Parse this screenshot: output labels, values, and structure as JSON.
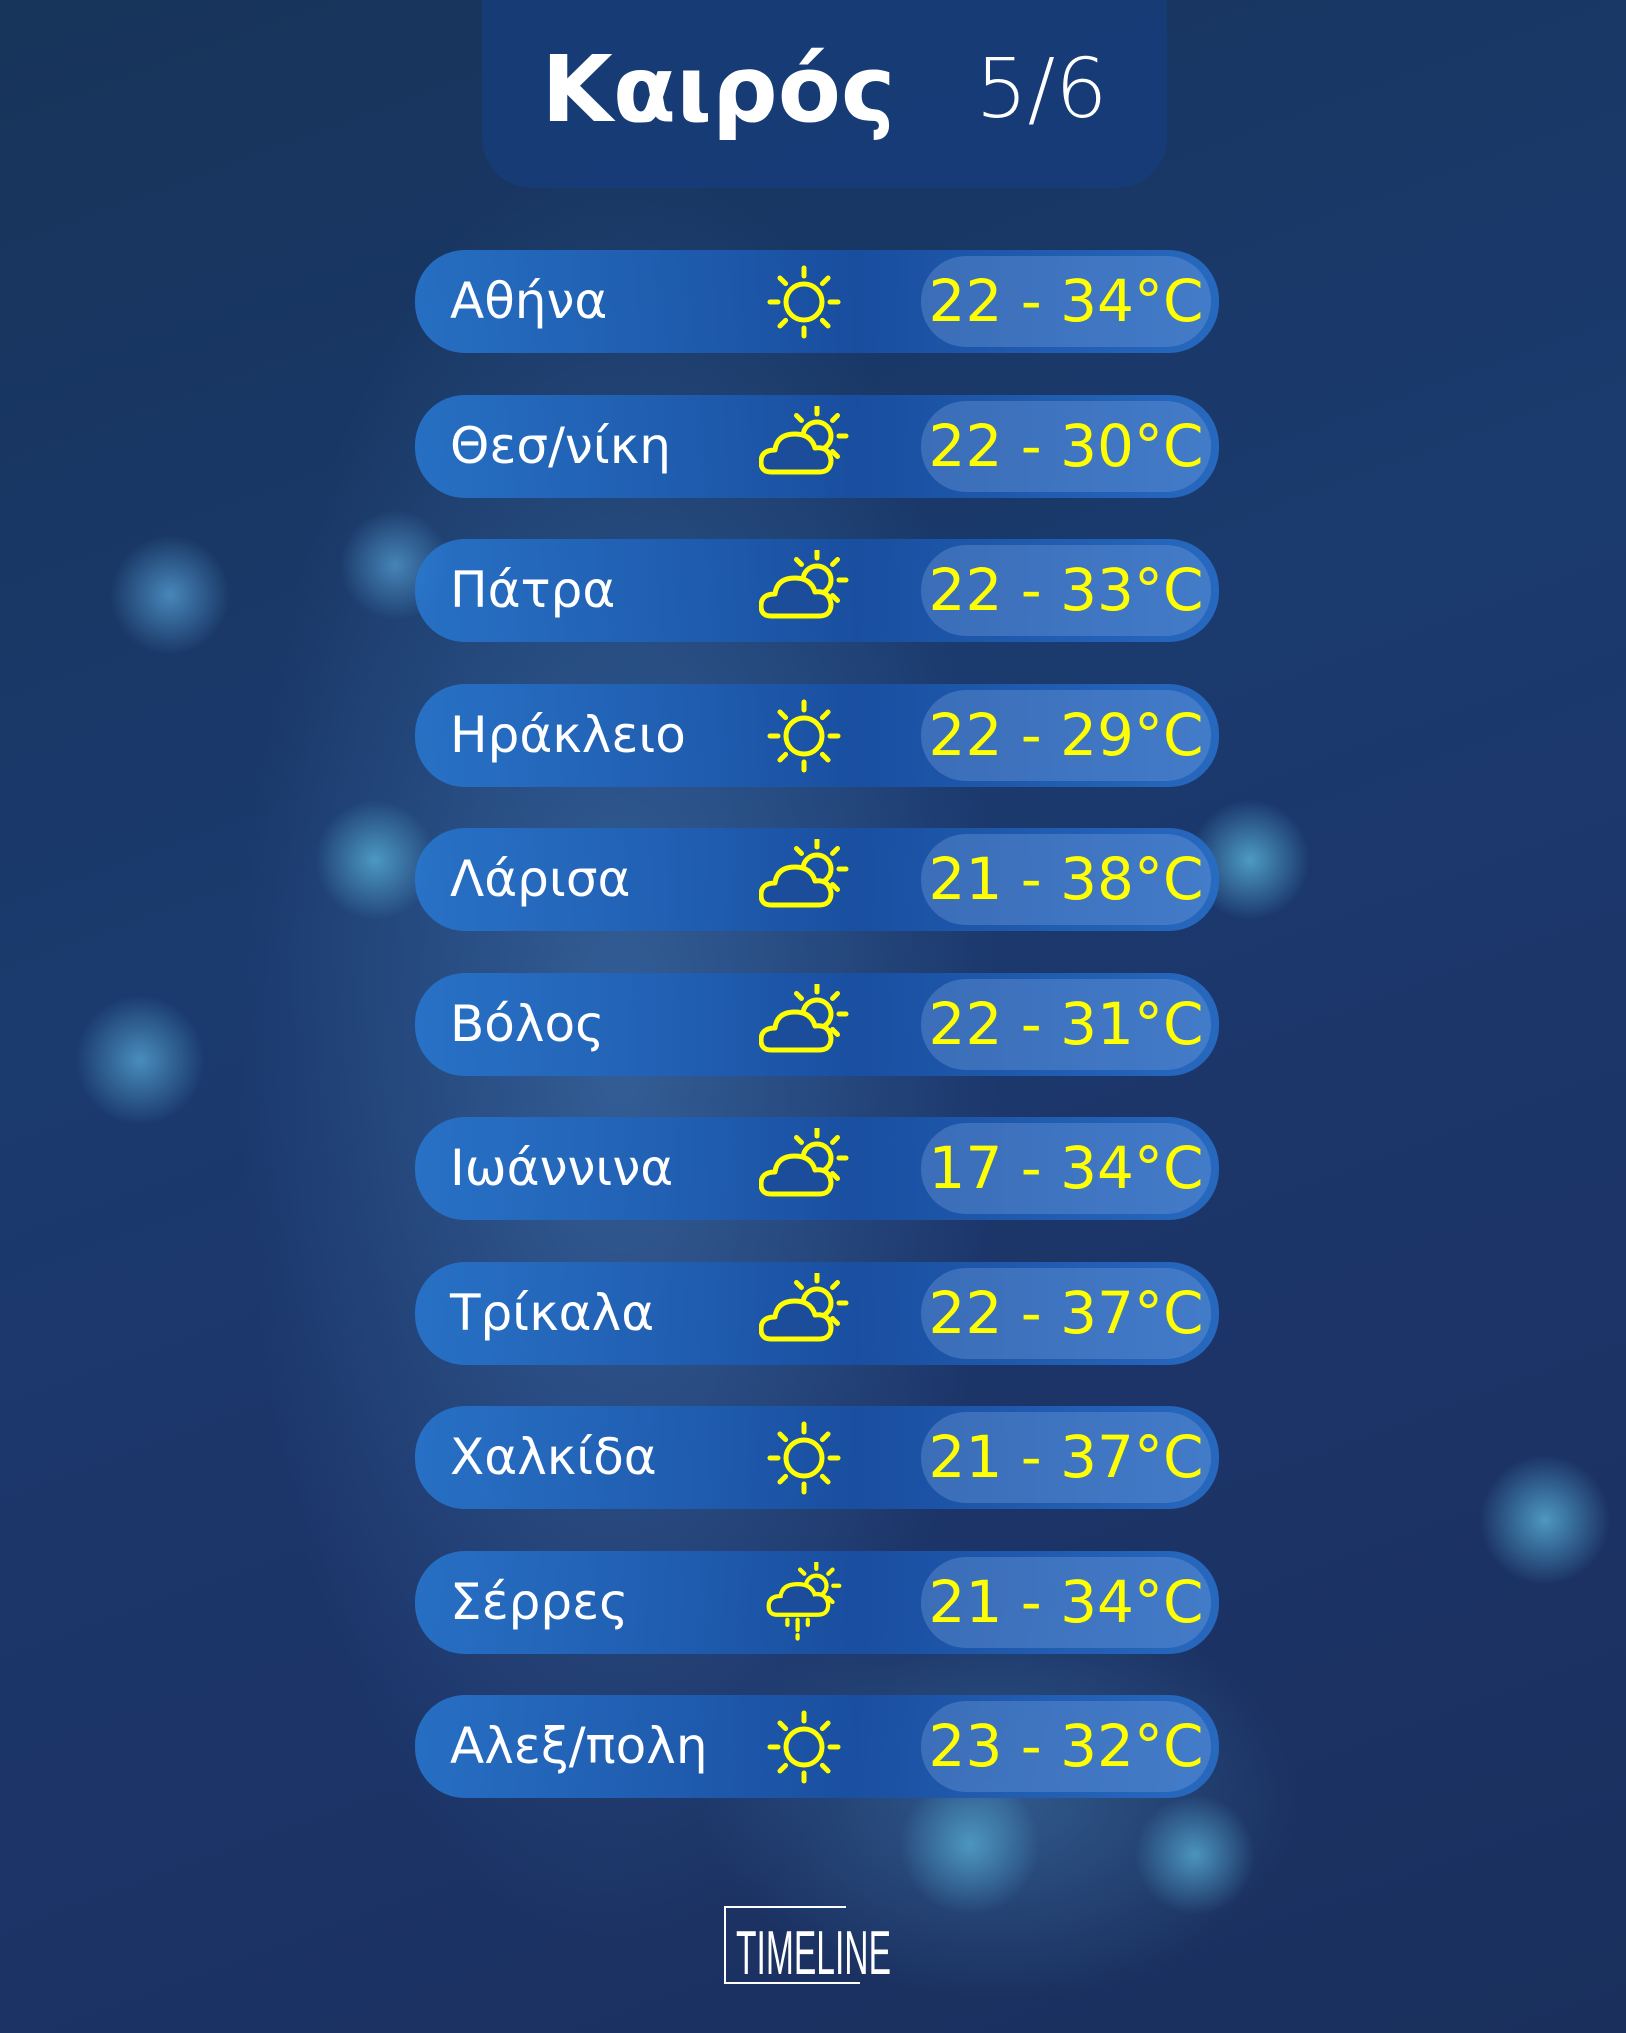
{
  "header": {
    "title": "Καιρός",
    "date": "5/6"
  },
  "colors": {
    "temperature": "#ffff00",
    "icon": "#ffff00"
  },
  "cities": [
    {
      "name": "Αθήνα",
      "icon": "sun-icon",
      "temp": "22 - 34°C"
    },
    {
      "name": "Θεσ/νίκη",
      "icon": "partly-cloudy-icon",
      "temp": "22 - 30°C"
    },
    {
      "name": "Πάτρα",
      "icon": "partly-cloudy-icon",
      "temp": "22 - 33°C"
    },
    {
      "name": "Ηράκλειο",
      "icon": "sun-icon",
      "temp": "22 - 29°C"
    },
    {
      "name": "Λάρισα",
      "icon": "partly-cloudy-icon",
      "temp": "21 - 38°C"
    },
    {
      "name": "Βόλος",
      "icon": "partly-cloudy-icon",
      "temp": "22 - 31°C"
    },
    {
      "name": "Ιωάννινα",
      "icon": "partly-cloudy-icon",
      "temp": "17 - 34°C"
    },
    {
      "name": "Τρίκαλα",
      "icon": "partly-cloudy-icon",
      "temp": "22 - 37°C"
    },
    {
      "name": "Χαλκίδα",
      "icon": "sun-icon",
      "temp": "21 - 37°C"
    },
    {
      "name": "Σέρρες",
      "icon": "rain-sun-icon",
      "temp": "21 - 34°C"
    },
    {
      "name": "Αλεξ/πολη",
      "icon": "sun-icon",
      "temp": "23 - 32°C"
    }
  ],
  "logo": {
    "text": "TIMELINE"
  }
}
